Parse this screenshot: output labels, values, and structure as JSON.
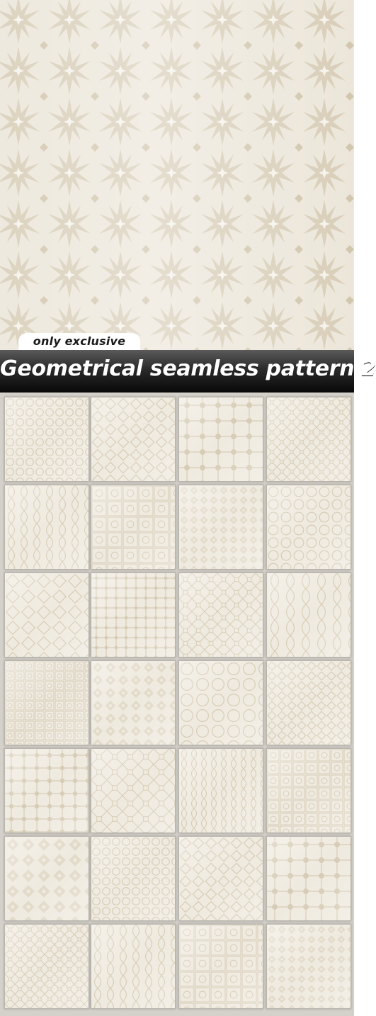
{
  "badge": {
    "label": "only exclusive"
  },
  "title": {
    "text": "Geometrical seamless pattern 2"
  },
  "colors": {
    "pattern_background": "#ebe5d8",
    "pattern_motif": "#d6cbb4",
    "title_bar": "#111111",
    "title_text": "#ffffff",
    "tile_background": "#efeadf"
  },
  "thumbnails": {
    "columns": 4,
    "count": 28,
    "description_icon": "geometric-pattern-thumbnail"
  }
}
